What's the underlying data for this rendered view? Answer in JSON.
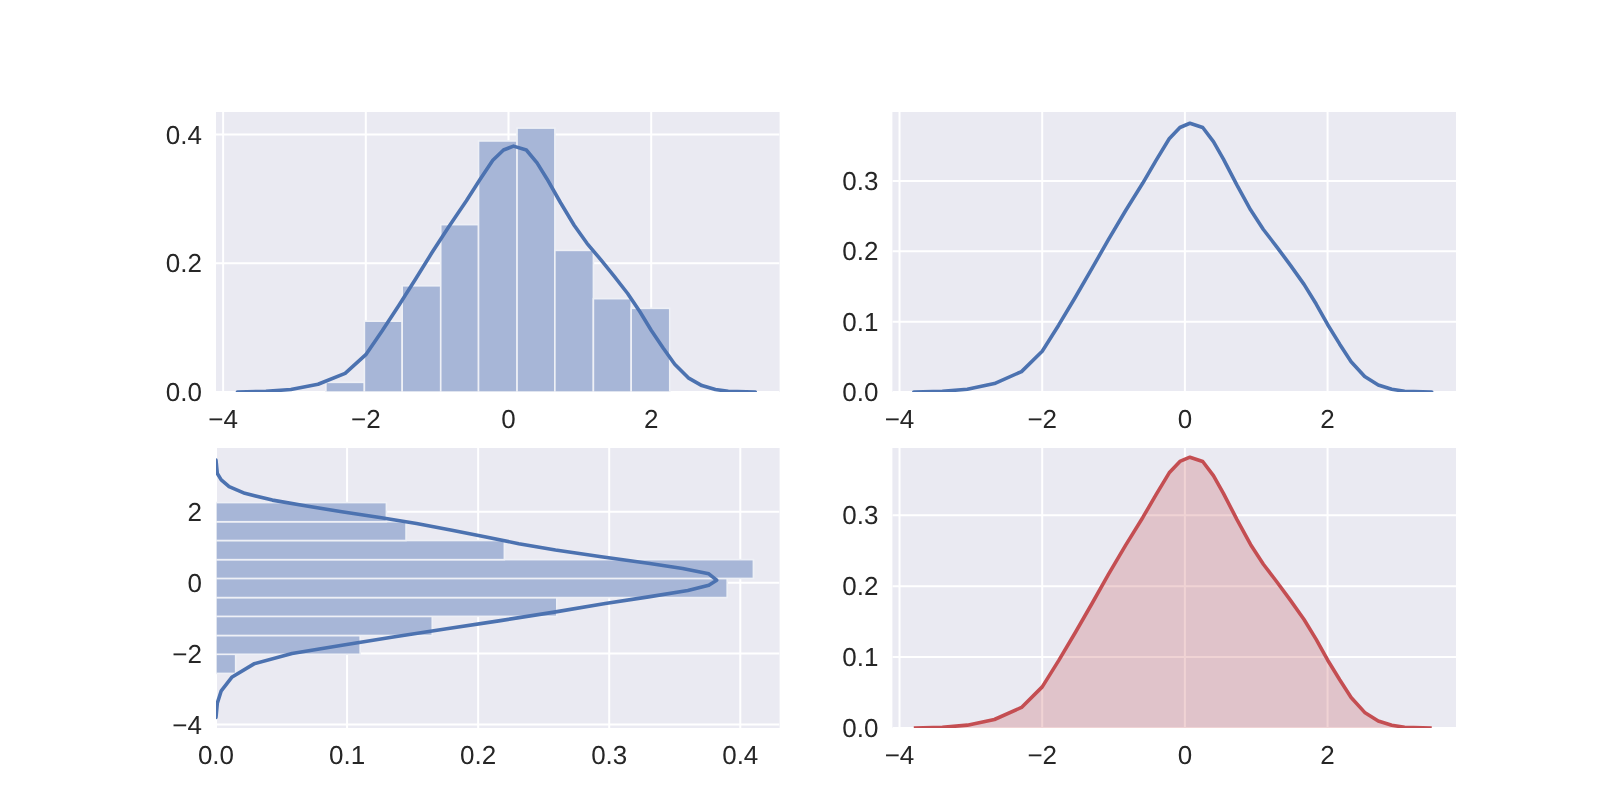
{
  "chart_data": [
    {
      "type": "histogram",
      "bins": [
        -2.56,
        -2.02,
        -1.49,
        -0.95,
        -0.42,
        0.12,
        0.65,
        1.19,
        1.72,
        2.26
      ],
      "values": [
        0.015,
        0.11,
        0.165,
        0.26,
        0.39,
        0.41,
        0.22,
        0.145,
        0.13
      ],
      "color": "#a7b6d7",
      "series": [
        {
          "type": "line",
          "color": "#4c72b0",
          "x": [
            -3.8,
            -3.4,
            -3.05,
            -2.67,
            -2.29,
            -2.0,
            -1.77,
            -1.54,
            -1.3,
            -1.07,
            -0.83,
            -0.59,
            -0.4,
            -0.22,
            -0.07,
            0.07,
            0.25,
            0.4,
            0.54,
            0.73,
            0.92,
            1.1,
            1.29,
            1.48,
            1.67,
            1.84,
            2.0,
            2.17,
            2.33,
            2.52,
            2.71,
            2.9,
            3.08,
            3.46
          ],
          "values": [
            0,
            0.001,
            0.004,
            0.012,
            0.029,
            0.058,
            0.095,
            0.134,
            0.176,
            0.217,
            0.258,
            0.297,
            0.33,
            0.36,
            0.376,
            0.382,
            0.376,
            0.356,
            0.331,
            0.294,
            0.259,
            0.231,
            0.206,
            0.18,
            0.153,
            0.125,
            0.096,
            0.068,
            0.043,
            0.022,
            0.01,
            0.004,
            0.001,
            0
          ]
        }
      ],
      "xlim": [
        -4.1,
        3.8
      ],
      "ylim": [
        0,
        0.435
      ],
      "xticks": [
        {
          "value": -4,
          "label": "−4"
        },
        {
          "value": -2,
          "label": "−2"
        },
        0,
        2
      ],
      "yticks": [
        {
          "value": 0,
          "label": "0.0"
        },
        0.2,
        0.4
      ],
      "grid": true
    },
    {
      "type": "line",
      "series": [
        {
          "color": "#4c72b0",
          "x": [
            -3.8,
            -3.4,
            -3.05,
            -2.67,
            -2.29,
            -2.0,
            -1.77,
            -1.54,
            -1.3,
            -1.07,
            -0.83,
            -0.59,
            -0.4,
            -0.22,
            -0.07,
            0.07,
            0.25,
            0.4,
            0.54,
            0.73,
            0.92,
            1.1,
            1.29,
            1.48,
            1.67,
            1.84,
            2.0,
            2.17,
            2.33,
            2.52,
            2.71,
            2.9,
            3.08,
            3.46
          ],
          "values": [
            0,
            0.001,
            0.004,
            0.012,
            0.029,
            0.058,
            0.095,
            0.134,
            0.176,
            0.217,
            0.258,
            0.297,
            0.33,
            0.36,
            0.376,
            0.382,
            0.376,
            0.356,
            0.331,
            0.294,
            0.259,
            0.231,
            0.206,
            0.18,
            0.153,
            0.125,
            0.096,
            0.068,
            0.043,
            0.022,
            0.01,
            0.004,
            0.001,
            0
          ]
        }
      ],
      "xlim": [
        -4.1,
        3.8
      ],
      "ylim": [
        0,
        0.398
      ],
      "xticks": [
        {
          "value": -4,
          "label": "−4"
        },
        {
          "value": -2,
          "label": "−2"
        },
        0,
        2
      ],
      "yticks": [
        {
          "value": 0,
          "label": "0.0"
        },
        0.1,
        0.2,
        0.3
      ],
      "grid": true
    },
    {
      "type": "histogram",
      "orientation": "horizontal",
      "bins": [
        -2.56,
        -2.02,
        -1.49,
        -0.95,
        -0.42,
        0.12,
        0.65,
        1.19,
        1.72,
        2.26
      ],
      "values": [
        0.015,
        0.11,
        0.165,
        0.26,
        0.39,
        0.41,
        0.22,
        0.145,
        0.13
      ],
      "color": "#a7b6d7",
      "series": [
        {
          "type": "line",
          "color": "#4c72b0",
          "x": [
            -3.8,
            -3.4,
            -3.05,
            -2.67,
            -2.29,
            -2.0,
            -1.77,
            -1.54,
            -1.3,
            -1.07,
            -0.83,
            -0.59,
            -0.4,
            -0.22,
            -0.07,
            0.07,
            0.25,
            0.4,
            0.54,
            0.73,
            0.92,
            1.1,
            1.29,
            1.48,
            1.67,
            1.84,
            2.0,
            2.17,
            2.33,
            2.52,
            2.71,
            2.9,
            3.08,
            3.46
          ],
          "values": [
            0,
            0.001,
            0.004,
            0.012,
            0.029,
            0.058,
            0.095,
            0.134,
            0.176,
            0.217,
            0.258,
            0.297,
            0.33,
            0.36,
            0.376,
            0.382,
            0.376,
            0.356,
            0.331,
            0.294,
            0.259,
            0.231,
            0.206,
            0.18,
            0.153,
            0.125,
            0.096,
            0.068,
            0.043,
            0.022,
            0.01,
            0.004,
            0.001,
            0
          ]
        }
      ],
      "xlim": [
        0,
        0.43
      ],
      "ylim": [
        -4.1,
        3.8
      ],
      "xticks": [
        {
          "value": 0,
          "label": "0.0"
        },
        0.1,
        0.2,
        0.3,
        0.4
      ],
      "yticks": [
        {
          "value": -4,
          "label": "−4"
        },
        {
          "value": -2,
          "label": "−2"
        },
        0,
        2
      ],
      "grid": true
    },
    {
      "type": "area",
      "series": [
        {
          "color": "#c44e52",
          "x": [
            -3.8,
            -3.4,
            -3.05,
            -2.67,
            -2.29,
            -2.0,
            -1.77,
            -1.54,
            -1.3,
            -1.07,
            -0.83,
            -0.59,
            -0.4,
            -0.22,
            -0.07,
            0.07,
            0.25,
            0.4,
            0.54,
            0.73,
            0.92,
            1.1,
            1.29,
            1.48,
            1.67,
            1.84,
            2.0,
            2.17,
            2.33,
            2.52,
            2.71,
            2.9,
            3.08,
            3.46
          ],
          "values": [
            0,
            0.001,
            0.004,
            0.012,
            0.029,
            0.058,
            0.095,
            0.134,
            0.176,
            0.217,
            0.258,
            0.297,
            0.33,
            0.36,
            0.376,
            0.382,
            0.376,
            0.356,
            0.331,
            0.294,
            0.259,
            0.231,
            0.206,
            0.18,
            0.153,
            0.125,
            0.096,
            0.068,
            0.043,
            0.022,
            0.01,
            0.004,
            0.001,
            0
          ]
        }
      ],
      "xlim": [
        -4.1,
        3.8
      ],
      "ylim": [
        0,
        0.395
      ],
      "xticks": [
        {
          "value": -4,
          "label": "−4"
        },
        {
          "value": -2,
          "label": "−2"
        },
        0,
        2
      ],
      "yticks": [
        {
          "value": 0,
          "label": "0.0"
        },
        0.1,
        0.2,
        0.3
      ],
      "grid": true
    }
  ]
}
